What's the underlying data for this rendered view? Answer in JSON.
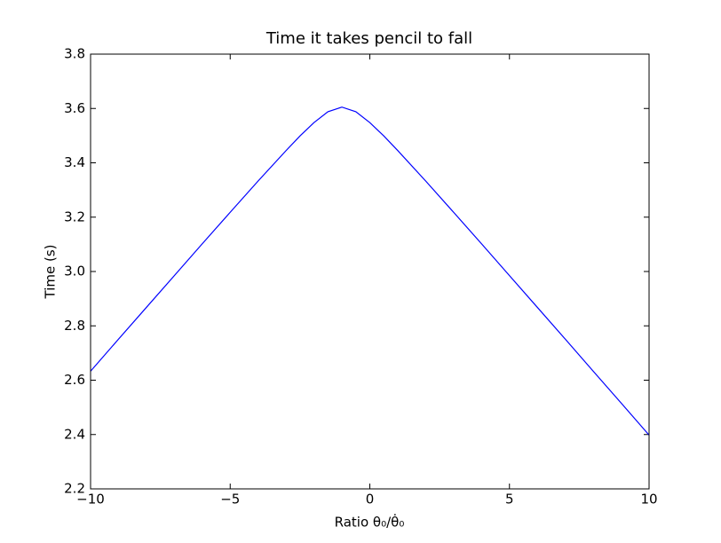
{
  "chart_data": {
    "type": "line",
    "title": "Time it takes pencil to fall",
    "xlabel": "Ratio θ₀/θ̇₀",
    "ylabel": "Time (s)",
    "x": [
      -10,
      -9,
      -8,
      -7,
      -6,
      -5,
      -4,
      -3,
      -2.5,
      -2,
      -1.5,
      -1,
      -0.5,
      0,
      0.5,
      1,
      2,
      3,
      4,
      5,
      6,
      7,
      8,
      9,
      10
    ],
    "series": [
      {
        "color": "#0000ff",
        "values": [
          2.633,
          2.751,
          2.868,
          2.985,
          3.102,
          3.218,
          3.333,
          3.445,
          3.499,
          3.548,
          3.588,
          3.605,
          3.588,
          3.548,
          3.499,
          3.445,
          3.333,
          3.218,
          3.102,
          2.985,
          2.868,
          2.751,
          2.633,
          2.516,
          2.398
        ]
      }
    ],
    "xlim": [
      -10,
      10
    ],
    "xticks": [
      {
        "value": -10,
        "label": "−10"
      },
      {
        "value": -5,
        "label": "−5"
      },
      0,
      5,
      10
    ],
    "ylim": [
      2.2,
      3.8
    ],
    "yticks": [
      2.2,
      2.4,
      2.6,
      2.8,
      {
        "value": 3,
        "label": "3.0"
      },
      3.2,
      3.4,
      3.6,
      3.8
    ]
  }
}
